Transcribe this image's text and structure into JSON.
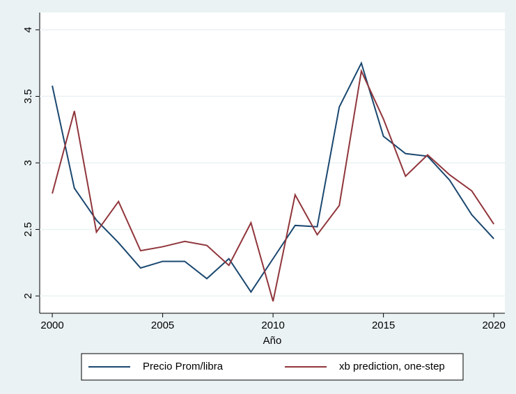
{
  "chart_data": {
    "type": "line",
    "x_label": "Año",
    "x": [
      2000,
      2001,
      2002,
      2003,
      2004,
      2005,
      2006,
      2007,
      2008,
      2009,
      2010,
      2011,
      2012,
      2013,
      2014,
      2015,
      2016,
      2017,
      2018,
      2019,
      2020
    ],
    "series": [
      {
        "name": "Precio Prom/libra",
        "color": "#1a476f",
        "values": [
          3.58,
          2.81,
          2.57,
          2.4,
          2.21,
          2.26,
          2.26,
          2.13,
          2.28,
          2.03,
          2.28,
          2.53,
          2.52,
          3.42,
          3.75,
          3.2,
          3.07,
          3.05,
          2.87,
          2.61,
          2.43
        ]
      },
      {
        "name": "xb prediction, one-step",
        "color": "#90353b",
        "values": [
          2.77,
          3.39,
          2.48,
          2.71,
          2.34,
          2.37,
          2.41,
          2.38,
          2.23,
          2.55,
          1.96,
          2.76,
          2.46,
          2.68,
          3.69,
          3.33,
          2.9,
          3.06,
          2.91,
          2.79,
          2.54
        ]
      }
    ],
    "xlim": [
      1999.43,
      2020.5
    ],
    "xticks": [
      2000,
      2005,
      2010,
      2015,
      2020
    ],
    "ylim": [
      1.87,
      4.13
    ],
    "yticks": [
      2,
      2.5,
      3,
      3.5,
      4
    ],
    "grid": true,
    "legend": "bottom"
  }
}
